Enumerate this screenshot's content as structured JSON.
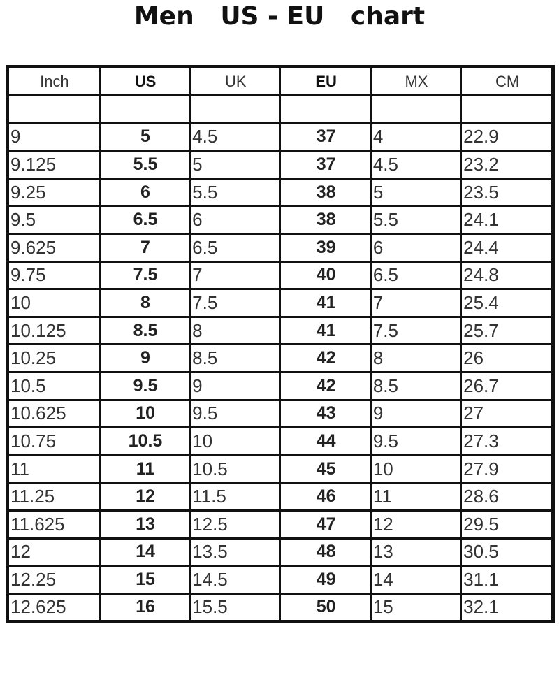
{
  "title": "Men   US - EU   chart",
  "table": {
    "headers": [
      "Inch",
      "US",
      "UK",
      "EU",
      "MX",
      "CM"
    ],
    "bold_columns": [
      1,
      3
    ],
    "rows": [
      [
        "",
        "",
        "",
        "",
        "",
        ""
      ],
      [
        "9",
        "5",
        "4.5",
        "37",
        "4",
        "22.9"
      ],
      [
        "9.125",
        "5.5",
        "5",
        "37",
        "4.5",
        "23.2"
      ],
      [
        "9.25",
        "6",
        "5.5",
        "38",
        "5",
        "23.5"
      ],
      [
        "9.5",
        "6.5",
        "6",
        "38",
        "5.5",
        "24.1"
      ],
      [
        "9.625",
        "7",
        "6.5",
        "39",
        "6",
        "24.4"
      ],
      [
        "9.75",
        "7.5",
        "7",
        "40",
        "6.5",
        "24.8"
      ],
      [
        "10",
        "8",
        "7.5",
        "41",
        "7",
        "25.4"
      ],
      [
        "10.125",
        "8.5",
        "8",
        "41",
        "7.5",
        "25.7"
      ],
      [
        "10.25",
        "9",
        "8.5",
        "42",
        "8",
        "26"
      ],
      [
        "10.5",
        "9.5",
        "9",
        "42",
        "8.5",
        "26.7"
      ],
      [
        "10.625",
        "10",
        "9.5",
        "43",
        "9",
        "27"
      ],
      [
        "10.75",
        "10.5",
        "10",
        "44",
        "9.5",
        "27.3"
      ],
      [
        "11",
        "11",
        "10.5",
        "45",
        "10",
        "27.9"
      ],
      [
        "11.25",
        "12",
        "11.5",
        "46",
        "11",
        "28.6"
      ],
      [
        "11.625",
        "13",
        "12.5",
        "47",
        "12",
        "29.5"
      ],
      [
        "12",
        "14",
        "13.5",
        "48",
        "13",
        "30.5"
      ],
      [
        "12.25",
        "15",
        "14.5",
        "49",
        "14",
        "31.1"
      ],
      [
        "12.625",
        "16",
        "15.5",
        "50",
        "15",
        "32.1"
      ]
    ]
  }
}
